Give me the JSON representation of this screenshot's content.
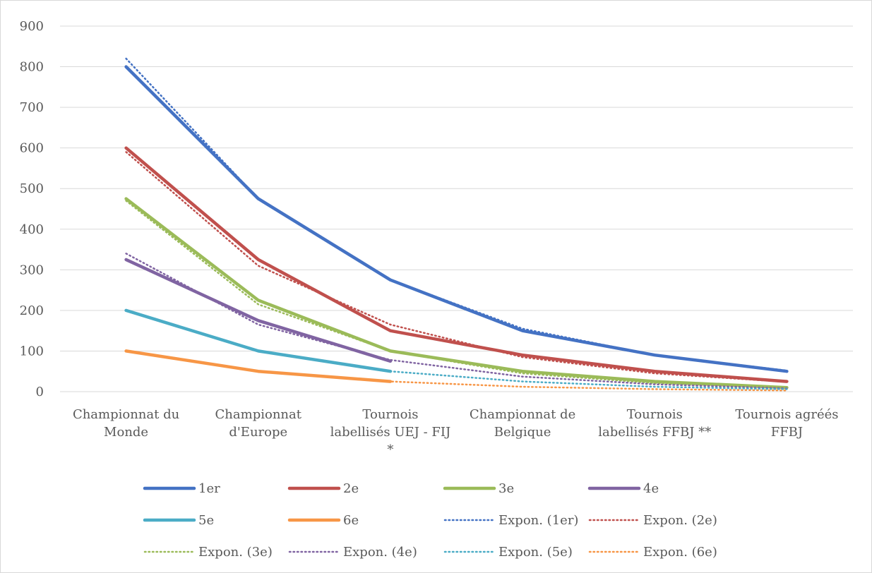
{
  "chart_data": {
    "type": "line",
    "categories": [
      [
        "Championnat du",
        "Monde"
      ],
      [
        "Championnat",
        "d'Europe"
      ],
      [
        "Tournois",
        "labellisés UEJ - FIJ",
        "*"
      ],
      [
        "Championnat de",
        "Belgique"
      ],
      [
        "Tournois",
        "labellisés FFBJ **"
      ],
      [
        "Tournois agréés",
        "FFBJ"
      ]
    ],
    "ylim": [
      0,
      900
    ],
    "yticks": [
      "0",
      "100",
      "200",
      "300",
      "400",
      "500",
      "600",
      "700",
      "800",
      "900"
    ],
    "grid": true,
    "legend_position": "bottom",
    "series": [
      {
        "name": "1er",
        "color": "#4472c4",
        "values": [
          800,
          475,
          275,
          150,
          90,
          50
        ]
      },
      {
        "name": "2e",
        "color": "#c0504d",
        "values": [
          600,
          325,
          150,
          90,
          50,
          25
        ]
      },
      {
        "name": "3e",
        "color": "#9bbb59",
        "values": [
          475,
          225,
          100,
          50,
          25,
          10
        ]
      },
      {
        "name": "4e",
        "color": "#8064a2",
        "values": [
          325,
          175,
          75,
          null,
          null,
          null
        ]
      },
      {
        "name": "5e",
        "color": "#4bacc6",
        "values": [
          200,
          100,
          50,
          null,
          null,
          null
        ]
      },
      {
        "name": "6e",
        "color": "#f79646",
        "values": [
          100,
          50,
          25,
          null,
          null,
          null
        ]
      }
    ],
    "trendlines": [
      {
        "name": "Expon. (1er)",
        "color": "#4472c4",
        "type": "exponential",
        "values": [
          820,
          475,
          275,
          155,
          90,
          52
        ]
      },
      {
        "name": "Expon. (2e)",
        "color": "#c0504d",
        "type": "exponential",
        "values": [
          590,
          310,
          165,
          85,
          45,
          24
        ]
      },
      {
        "name": "Expon. (3e)",
        "color": "#9bbb59",
        "type": "exponential",
        "values": [
          470,
          215,
          100,
          45,
          21,
          10
        ]
      },
      {
        "name": "Expon. (4e)",
        "color": "#8064a2",
        "type": "exponential",
        "values": [
          340,
          165,
          78,
          37,
          18,
          8
        ]
      },
      {
        "name": "Expon. (5e)",
        "color": "#4bacc6",
        "type": "exponential",
        "values": [
          200,
          100,
          50,
          25,
          12,
          6
        ]
      },
      {
        "name": "Expon. (6e)",
        "color": "#f79646",
        "type": "exponential",
        "values": [
          100,
          50,
          25,
          12,
          6,
          3
        ]
      }
    ]
  }
}
